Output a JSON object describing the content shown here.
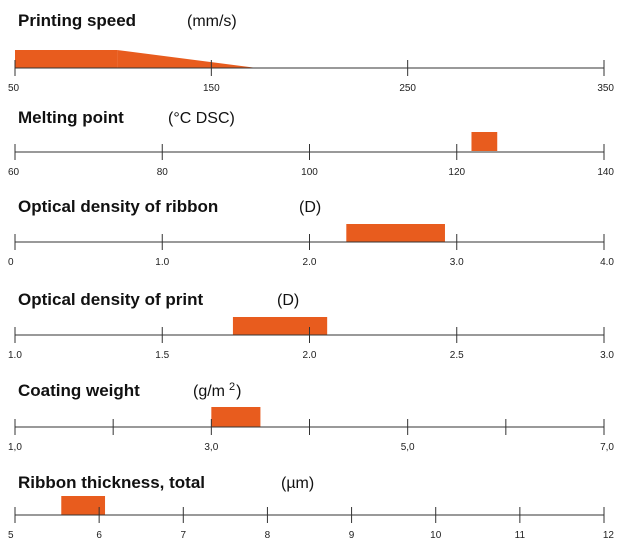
{
  "colors": {
    "accent": "#E85C1E",
    "axis": "#333333",
    "text": "#111111"
  },
  "chart_data": [
    {
      "type": "range",
      "title": "Printing speed",
      "unit": "(mm/s)",
      "xlim": [
        50,
        350
      ],
      "ticks": [
        "50",
        "150",
        "250",
        "350"
      ],
      "tick_values": [
        50,
        150,
        250,
        350
      ],
      "series": [
        {
          "shape": "full",
          "range": [
            50,
            102
          ]
        },
        {
          "shape": "taper",
          "range": [
            102,
            173
          ]
        }
      ]
    },
    {
      "type": "range",
      "title": "Melting point",
      "unit": "(°C DSC)",
      "xlim": [
        60,
        140
      ],
      "ticks": [
        "60",
        "80",
        "100",
        "120",
        "140"
      ],
      "tick_values": [
        60,
        80,
        100,
        120,
        140
      ],
      "series": [
        {
          "shape": "full",
          "range": [
            122,
            125.5
          ]
        }
      ]
    },
    {
      "type": "range",
      "title": "Optical density of ribbon",
      "unit": "(D)",
      "xlim": [
        0,
        4.0
      ],
      "ticks": [
        "0",
        "1.0",
        "2.0",
        "3.0",
        "4.0"
      ],
      "tick_values": [
        0,
        1,
        2,
        3,
        4
      ],
      "series": [
        {
          "shape": "full",
          "range": [
            2.25,
            2.92
          ]
        }
      ]
    },
    {
      "type": "range",
      "title": "Optical density of print",
      "unit": "(D)",
      "xlim": [
        1.0,
        3.0
      ],
      "ticks": [
        "1.0",
        "1.5",
        "2.0",
        "2.5",
        "3.0"
      ],
      "tick_values": [
        1.0,
        1.5,
        2.0,
        2.5,
        3.0
      ],
      "series": [
        {
          "shape": "full",
          "range": [
            1.74,
            2.06
          ]
        }
      ]
    },
    {
      "type": "range",
      "title": "Coating weight",
      "unit": "(g/m",
      "unit_sup": "2",
      "unit_close": ")",
      "xlim": [
        1.0,
        7.0
      ],
      "ticks": [
        "1,0",
        "",
        "3,0",
        "",
        "5,0",
        "",
        "7,0"
      ],
      "tick_values": [
        1,
        2,
        3,
        4,
        5,
        6,
        7
      ],
      "series": [
        {
          "shape": "full",
          "range": [
            3.0,
            3.5
          ]
        }
      ]
    },
    {
      "type": "range",
      "title": "Ribbon thickness, total",
      "unit": "(µm)",
      "xlim": [
        5,
        12
      ],
      "ticks": [
        "5",
        "6",
        "7",
        "8",
        "9",
        "10",
        "11",
        "12"
      ],
      "tick_values": [
        5,
        6,
        7,
        8,
        9,
        10,
        11,
        12
      ],
      "series": [
        {
          "shape": "full",
          "range": [
            5.55,
            6.07
          ]
        }
      ]
    }
  ]
}
